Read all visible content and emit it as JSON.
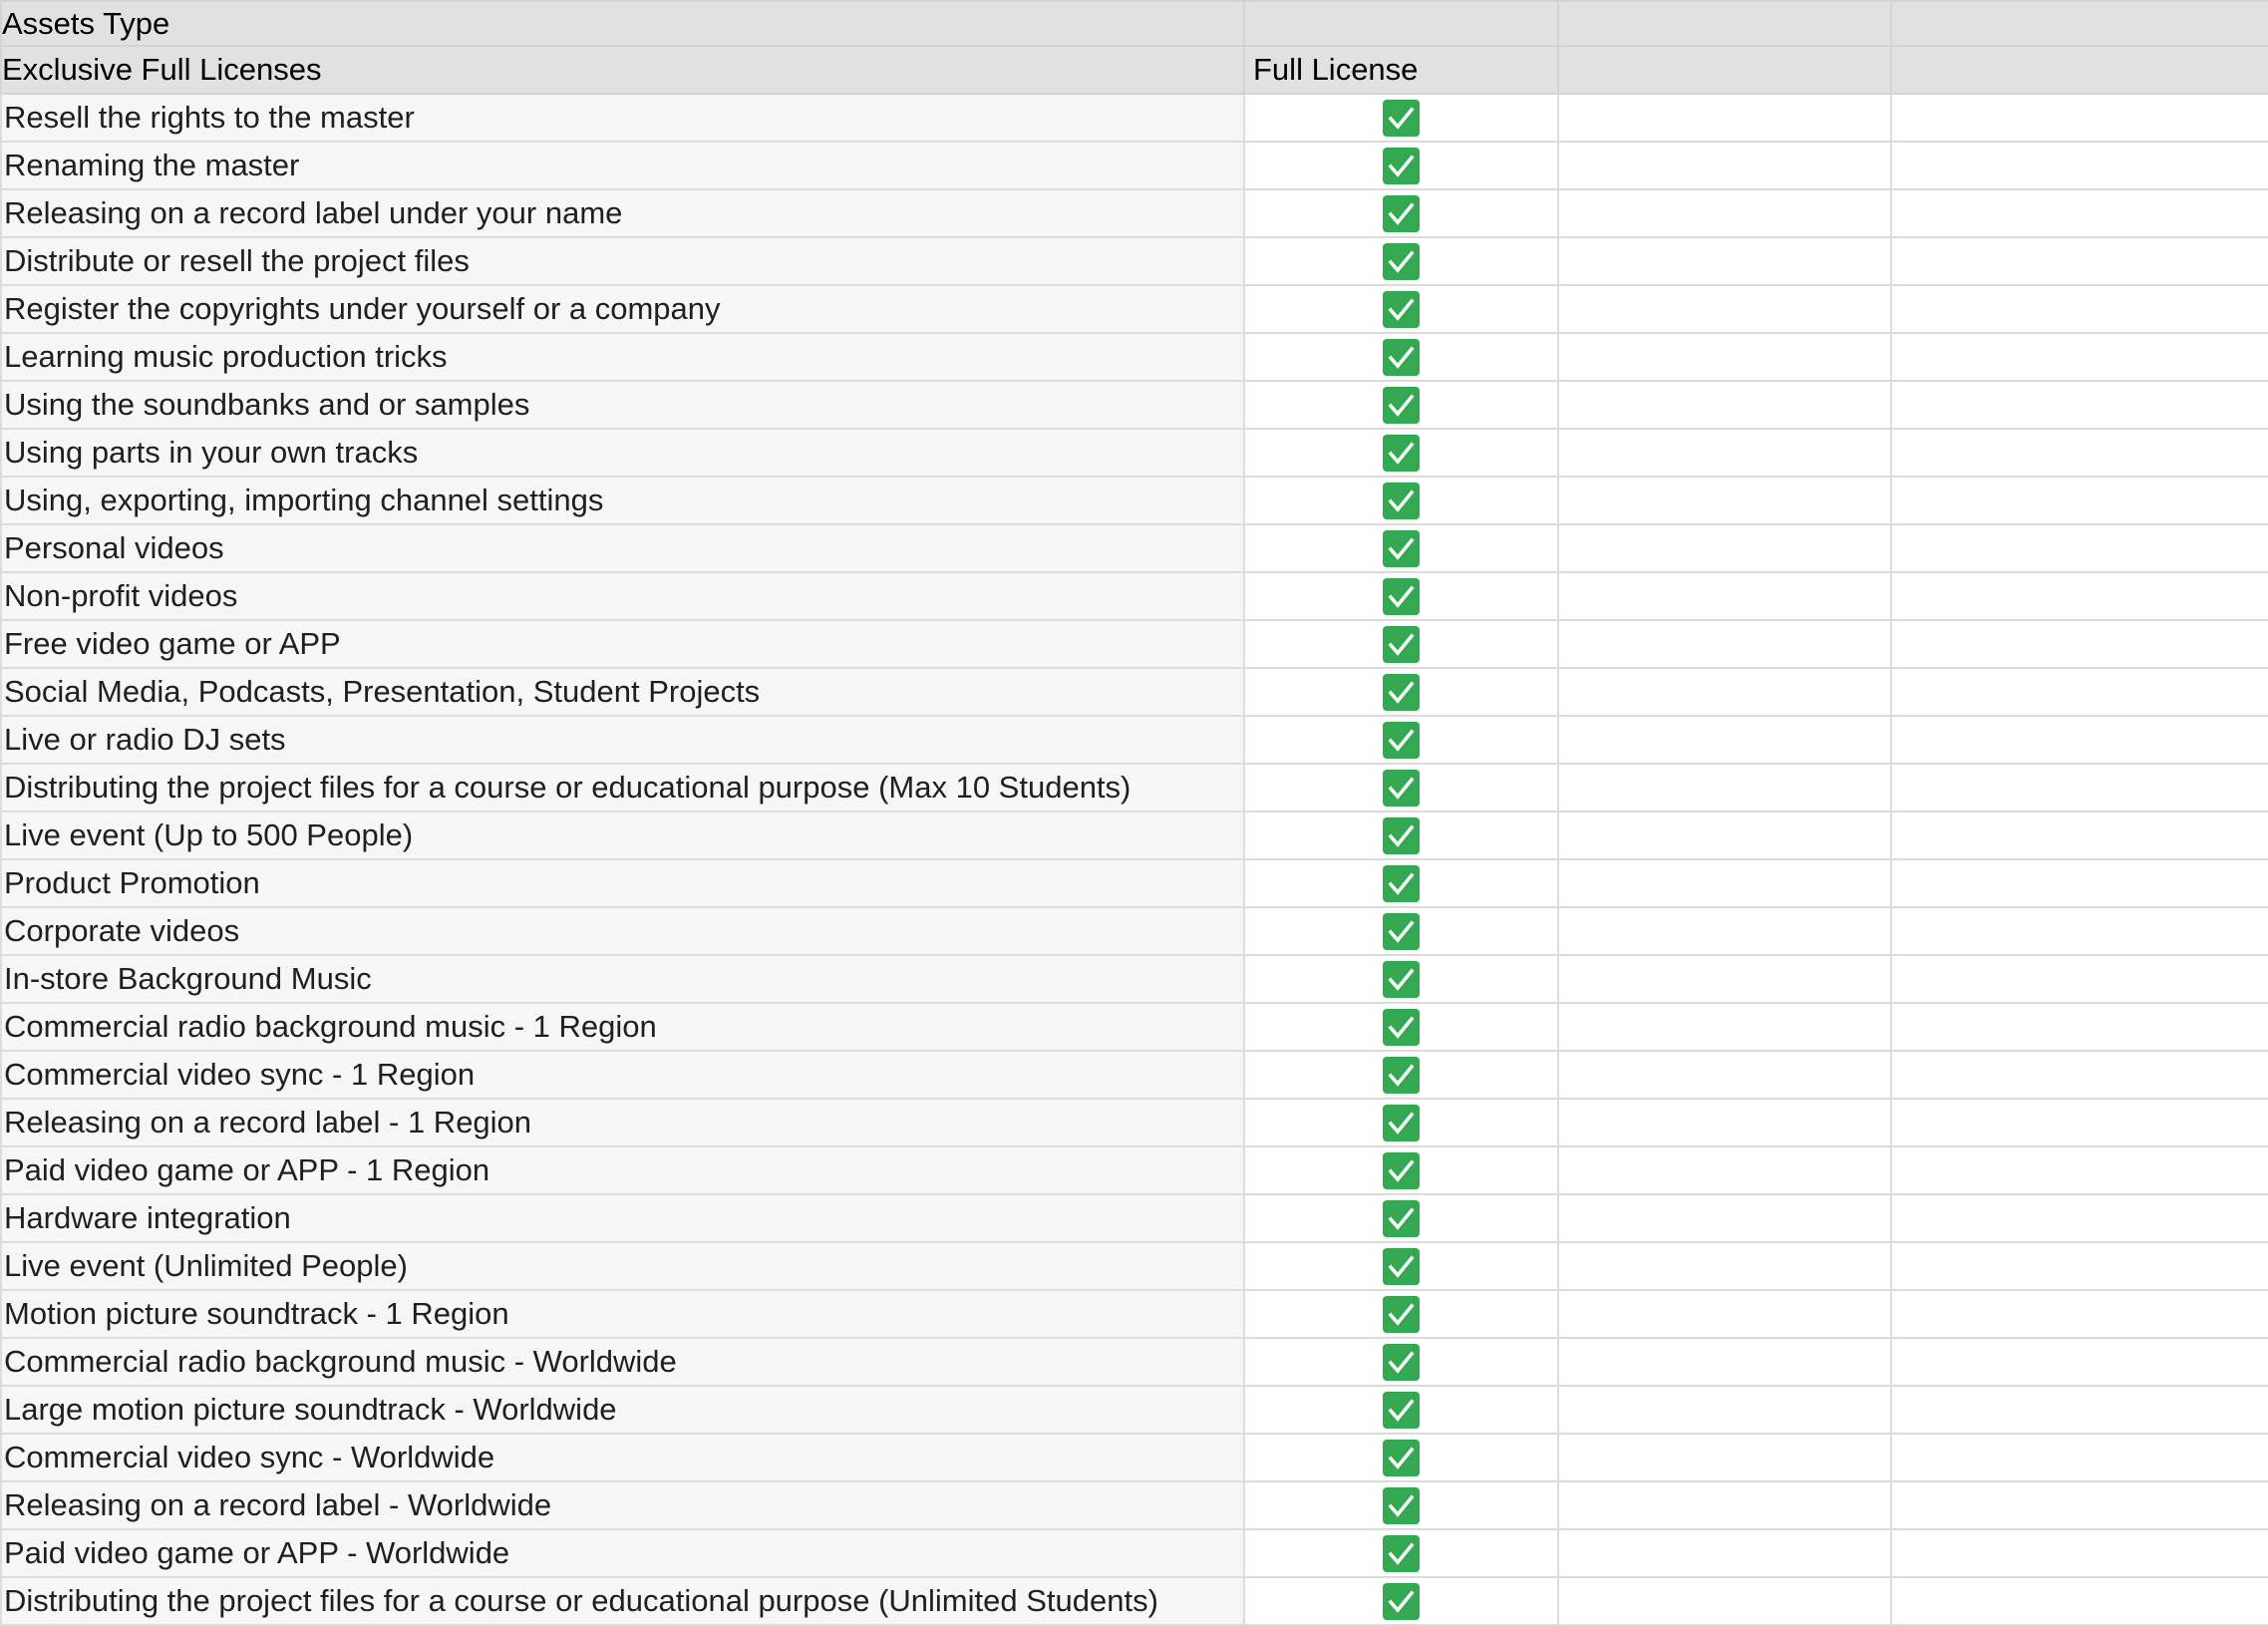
{
  "header": {
    "row1": "Assets Type",
    "row2": "Exclusive Full Licenses",
    "column": "Full License"
  },
  "check_color": "#34a853",
  "check_icon": "checked-checkbox",
  "rows": [
    {
      "label": "Resell the rights to the master",
      "checked": true
    },
    {
      "label": "Renaming the master",
      "checked": true
    },
    {
      "label": "Releasing on a record label under your name",
      "checked": true
    },
    {
      "label": "Distribute or resell the project files",
      "checked": true
    },
    {
      "label": "Register the copyrights under yourself or a company",
      "checked": true
    },
    {
      "label": "Learning music production tricks",
      "checked": true
    },
    {
      "label": "Using the soundbanks and or samples",
      "checked": true
    },
    {
      "label": "Using parts in your own tracks",
      "checked": true
    },
    {
      "label": "Using, exporting, importing channel settings",
      "checked": true
    },
    {
      "label": "Personal videos",
      "checked": true
    },
    {
      "label": "Non-profit videos",
      "checked": true
    },
    {
      "label": "Free video game or APP",
      "checked": true
    },
    {
      "label": "Social Media, Podcasts, Presentation, Student Projects",
      "checked": true
    },
    {
      "label": "Live or radio DJ sets",
      "checked": true
    },
    {
      "label": "Distributing the project files for a course or educational purpose (Max 10 Students)",
      "checked": true
    },
    {
      "label": "Live event (Up to 500 People)",
      "checked": true
    },
    {
      "label": "Product Promotion",
      "checked": true
    },
    {
      "label": "Corporate videos",
      "checked": true
    },
    {
      "label": "In-store Background Music",
      "checked": true
    },
    {
      "label": "Commercial radio background music - 1 Region",
      "checked": true
    },
    {
      "label": "Commercial video sync - 1 Region",
      "checked": true
    },
    {
      "label": "Releasing on a record label - 1 Region",
      "checked": true
    },
    {
      "label": "Paid video game or APP - 1 Region",
      "checked": true
    },
    {
      "label": "Hardware integration",
      "checked": true
    },
    {
      "label": "Live event (Unlimited People)",
      "checked": true
    },
    {
      "label": "Motion picture soundtrack - 1 Region",
      "checked": true
    },
    {
      "label": "Commercial radio background music - Worldwide",
      "checked": true
    },
    {
      "label": "Large motion picture soundtrack - Worldwide",
      "checked": true
    },
    {
      "label": "Commercial video sync - Worldwide",
      "checked": true
    },
    {
      "label": "Releasing on a record label - Worldwide",
      "checked": true
    },
    {
      "label": "Paid video game or APP - Worldwide",
      "checked": true
    },
    {
      "label": "Distributing the project files for a course or educational purpose (Unlimited Students)",
      "checked": true
    }
  ]
}
